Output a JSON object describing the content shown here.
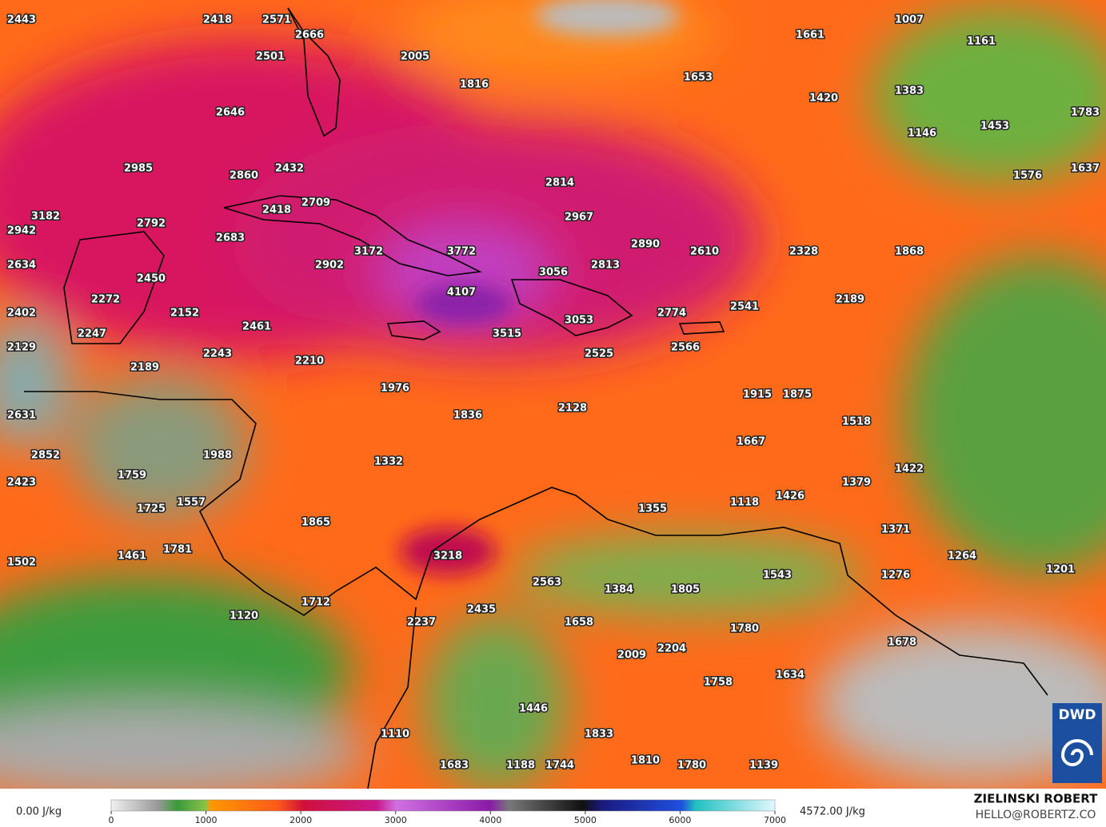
{
  "map": {
    "labels": [
      2443,
      2418,
      2571,
      2666,
      2501,
      2005,
      1816,
      1653,
      1661,
      1007,
      1161,
      1420,
      1383,
      1783,
      1146,
      1453,
      2646,
      2985,
      2860,
      2432,
      2814,
      1576,
      1637,
      3182,
      2942,
      2792,
      2418,
      2709,
      2683,
      2967,
      2890,
      2610,
      2328,
      1868,
      2634,
      3172,
      3772,
      2902,
      3056,
      2813,
      2450,
      2272,
      4107,
      2189,
      2402,
      2152,
      2461,
      3053,
      2774,
      2541,
      3515,
      2247,
      2129,
      2243,
      2210,
      2525,
      2566,
      2189,
      1976,
      1915,
      1875,
      2631,
      1836,
      2128,
      1518,
      1667,
      2852,
      1988,
      1332,
      1422,
      1759,
      1379,
      2423,
      1557,
      1118,
      1426,
      1725,
      1355,
      1865,
      1371,
      1781,
      1461,
      3218,
      1264,
      1502,
      1201,
      1543,
      1276,
      2563,
      1384,
      1805,
      1712,
      2435,
      1120,
      2237,
      1658,
      1780,
      1678,
      2204,
      2009,
      1634,
      1758,
      1446,
      1110,
      1833,
      1810,
      1683,
      1188,
      1744,
      1780,
      1139
    ]
  },
  "colorbar": {
    "min_label": "0.00 J/kg",
    "max_label": "4572.00 J/kg",
    "ticks": [
      0,
      1000,
      2000,
      3000,
      4000,
      5000,
      6000,
      7000
    ],
    "range": [
      0,
      7000
    ]
  },
  "credit": {
    "name": "ZIELINSKI ROBERT",
    "email": "HELLO@ROBERTZ.CO",
    "logo": "DWD"
  }
}
